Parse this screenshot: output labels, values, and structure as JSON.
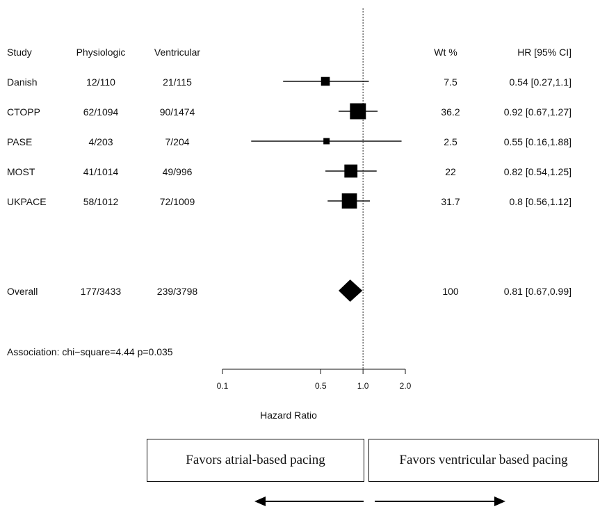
{
  "chart_data": {
    "type": "forest",
    "headers": {
      "study": "Study",
      "physiologic": "Physiologic",
      "ventricular": "Ventricular",
      "weight": "Wt %",
      "hr": "HR [95% CI]"
    },
    "studies": [
      {
        "name": "Danish",
        "physiologic": "12/110",
        "ventricular": "21/115",
        "weight": "7.5",
        "hr_text": "0.54 [0.27,1.1]",
        "hr": 0.54,
        "lo": 0.27,
        "hi": 1.1,
        "w": 7.5
      },
      {
        "name": "CTOPP",
        "physiologic": "62/1094",
        "ventricular": "90/1474",
        "weight": "36.2",
        "hr_text": "0.92 [0.67,1.27]",
        "hr": 0.92,
        "lo": 0.67,
        "hi": 1.27,
        "w": 36.2
      },
      {
        "name": "PASE",
        "physiologic": "4/203",
        "ventricular": "7/204",
        "weight": "2.5",
        "hr_text": "0.55 [0.16,1.88]",
        "hr": 0.55,
        "lo": 0.16,
        "hi": 1.88,
        "w": 2.5
      },
      {
        "name": "MOST",
        "physiologic": "41/1014",
        "ventricular": "49/996",
        "weight": "22",
        "hr_text": "0.82 [0.54,1.25]",
        "hr": 0.82,
        "lo": 0.54,
        "hi": 1.25,
        "w": 22
      },
      {
        "name": "UKPACE",
        "physiologic": "58/1012",
        "ventricular": "72/1009",
        "weight": "31.7",
        "hr_text": "0.8 [0.56,1.12]",
        "hr": 0.8,
        "lo": 0.56,
        "hi": 1.12,
        "w": 31.7
      }
    ],
    "overall": {
      "name": "Overall",
      "physiologic": "177/3433",
      "ventricular": "239/3798",
      "weight": "100",
      "hr_text": "0.81 [0.67,0.99]",
      "hr": 0.81,
      "lo": 0.67,
      "hi": 0.99
    },
    "association": "Association: chi−square=4.44 p=0.035",
    "xlabel": "Hazard Ratio",
    "x_scale": "log",
    "xlim": [
      0.1,
      2.0
    ],
    "ticks": [
      {
        "value": 0.1,
        "label": "0.1"
      },
      {
        "value": 0.5,
        "label": "0.5"
      },
      {
        "value": 1.0,
        "label": "1.0"
      },
      {
        "value": 2.0,
        "label": "2.0"
      }
    ],
    "reference_line": 1.0,
    "favors_left": "Favors atrial-based pacing",
    "favors_right": "Favors ventricular based pacing"
  }
}
